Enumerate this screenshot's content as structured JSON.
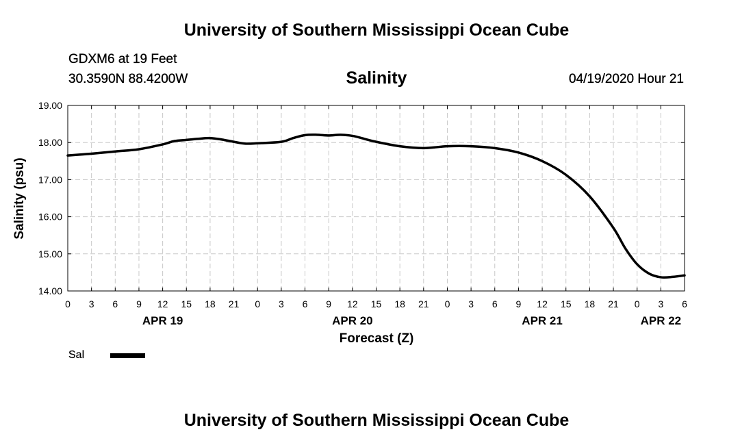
{
  "header": {
    "title": "University of Southern Mississippi Ocean Cube",
    "station": "GDXM6 at 19 Feet",
    "coordinates": "30.3590N 88.4200W",
    "datetime": "04/19/2020 Hour 21"
  },
  "footer": {
    "title": "University of Southern Mississippi Ocean Cube"
  },
  "legend": {
    "label": "Sal"
  },
  "colors": {
    "line": "#000000",
    "grid": "#c8c8c8",
    "background": "#ffffff"
  },
  "chart_data": {
    "type": "line",
    "title": "Salinity",
    "xlabel": "Forecast (Z)",
    "ylabel": "Salinity (psu)",
    "xlim": [
      0,
      78
    ],
    "ylim": [
      14,
      19
    ],
    "y_ticks": [
      "14.00",
      "15.00",
      "16.00",
      "17.00",
      "18.00",
      "19.00"
    ],
    "y_tick_values": [
      14,
      15,
      16,
      17,
      18,
      19
    ],
    "x_ticks": [
      {
        "h": 0,
        "label": "0"
      },
      {
        "h": 3,
        "label": "3"
      },
      {
        "h": 6,
        "label": "6"
      },
      {
        "h": 9,
        "label": "9"
      },
      {
        "h": 12,
        "label": "12"
      },
      {
        "h": 15,
        "label": "15"
      },
      {
        "h": 18,
        "label": "18"
      },
      {
        "h": 21,
        "label": "21"
      },
      {
        "h": 24,
        "label": "0"
      },
      {
        "h": 27,
        "label": "3"
      },
      {
        "h": 30,
        "label": "6"
      },
      {
        "h": 33,
        "label": "9"
      },
      {
        "h": 36,
        "label": "12"
      },
      {
        "h": 39,
        "label": "15"
      },
      {
        "h": 42,
        "label": "18"
      },
      {
        "h": 45,
        "label": "21"
      },
      {
        "h": 48,
        "label": "0"
      },
      {
        "h": 51,
        "label": "3"
      },
      {
        "h": 54,
        "label": "6"
      },
      {
        "h": 57,
        "label": "9"
      },
      {
        "h": 60,
        "label": "12"
      },
      {
        "h": 63,
        "label": "15"
      },
      {
        "h": 66,
        "label": "18"
      },
      {
        "h": 69,
        "label": "21"
      },
      {
        "h": 72,
        "label": "0"
      },
      {
        "h": 75,
        "label": "3"
      },
      {
        "h": 78,
        "label": "6"
      }
    ],
    "date_labels": [
      {
        "h": 12,
        "label": "APR 19"
      },
      {
        "h": 36,
        "label": "APR 20"
      },
      {
        "h": 60,
        "label": "APR 21"
      },
      {
        "h": 75,
        "label": "APR 22"
      }
    ],
    "grid": true,
    "series": [
      {
        "name": "Sal",
        "x": [
          0,
          3,
          6,
          9,
          12,
          13.5,
          15,
          16.5,
          18,
          19.5,
          21,
          22.5,
          24,
          27,
          28.5,
          30,
          31.5,
          33,
          34.5,
          36,
          37.5,
          39,
          42,
          45,
          48,
          51,
          54,
          57,
          60,
          63,
          66,
          69,
          70.5,
          72,
          73.5,
          75,
          76.5,
          78
        ],
        "values": [
          17.65,
          17.7,
          17.76,
          17.82,
          17.95,
          18.04,
          18.07,
          18.1,
          18.12,
          18.08,
          18.02,
          17.97,
          17.98,
          18.02,
          18.12,
          18.2,
          18.21,
          18.19,
          18.21,
          18.18,
          18.1,
          18.02,
          17.9,
          17.85,
          17.9,
          17.9,
          17.85,
          17.73,
          17.5,
          17.13,
          16.55,
          15.7,
          15.15,
          14.72,
          14.47,
          14.37,
          14.38,
          14.42
        ]
      }
    ]
  }
}
